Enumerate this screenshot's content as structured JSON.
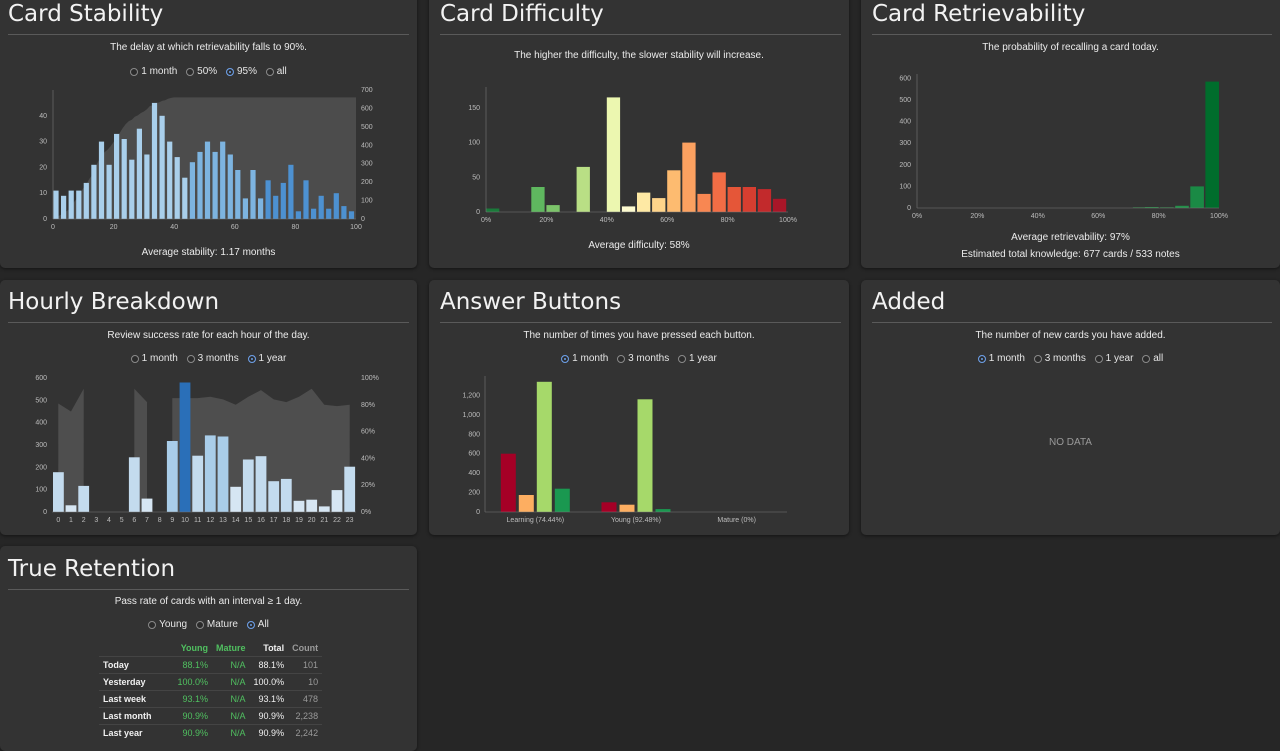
{
  "stability": {
    "title": "Card Stability",
    "subtitle": "The delay at which retrievability falls to 90%.",
    "radios": [
      {
        "label": "1 month",
        "on": false
      },
      {
        "label": "50%",
        "on": false
      },
      {
        "label": "95%",
        "on": true
      },
      {
        "label": "all",
        "on": false
      }
    ],
    "footer": "Average stability: 1.17 months"
  },
  "difficulty": {
    "title": "Card Difficulty",
    "subtitle": "The higher the difficulty, the slower stability will increase.",
    "footer": "Average difficulty: 58%"
  },
  "retrievability": {
    "title": "Card Retrievability",
    "subtitle": "The probability of recalling a card today.",
    "footer1": "Average retrievability: 97%",
    "footer2": "Estimated total knowledge: 677 cards / 533 notes"
  },
  "hourly": {
    "title": "Hourly Breakdown",
    "subtitle": "Review success rate for each hour of the day.",
    "radios": [
      {
        "label": "1 month",
        "on": false
      },
      {
        "label": "3 months",
        "on": false
      },
      {
        "label": "1 year",
        "on": true
      }
    ]
  },
  "answers": {
    "title": "Answer Buttons",
    "subtitle": "The number of times you have pressed each button.",
    "radios": [
      {
        "label": "1 month",
        "on": true
      },
      {
        "label": "3 months",
        "on": false
      },
      {
        "label": "1 year",
        "on": false
      }
    ]
  },
  "added": {
    "title": "Added",
    "subtitle": "The number of new cards you have added.",
    "radios": [
      {
        "label": "1 month",
        "on": true
      },
      {
        "label": "3 months",
        "on": false
      },
      {
        "label": "1 year",
        "on": false
      },
      {
        "label": "all",
        "on": false
      }
    ],
    "nodata": "NO DATA"
  },
  "retention": {
    "title": "True Retention",
    "subtitle": "Pass rate of cards with an interval ≥ 1 day.",
    "radios": [
      {
        "label": "Young",
        "on": false
      },
      {
        "label": "Mature",
        "on": false
      },
      {
        "label": "All",
        "on": true
      }
    ],
    "headers": [
      "",
      "Young",
      "Mature",
      "Total",
      "Count"
    ],
    "rows": [
      {
        "label": "Today",
        "young": "88.1%",
        "mature": "N/A",
        "total": "88.1%",
        "count": "101"
      },
      {
        "label": "Yesterday",
        "young": "100.0%",
        "mature": "N/A",
        "total": "100.0%",
        "count": "10"
      },
      {
        "label": "Last week",
        "young": "93.1%",
        "mature": "N/A",
        "total": "93.1%",
        "count": "478"
      },
      {
        "label": "Last month",
        "young": "90.9%",
        "mature": "N/A",
        "total": "90.9%",
        "count": "2,238"
      },
      {
        "label": "Last year",
        "young": "90.9%",
        "mature": "N/A",
        "total": "90.9%",
        "count": "2,242"
      }
    ]
  },
  "chart_data": [
    {
      "id": "stability",
      "type": "bar",
      "x_start": 1,
      "x_step": 1,
      "values": [
        11,
        9,
        11,
        11,
        14,
        21,
        30,
        21,
        33,
        31,
        23,
        35,
        25,
        45,
        40,
        30,
        24,
        16,
        22,
        26,
        30,
        26,
        30,
        25,
        19,
        8,
        19,
        8,
        15,
        9,
        14,
        21,
        3,
        15,
        4,
        9,
        4,
        10,
        5,
        3
      ],
      "ylim": [
        0,
        50
      ],
      "yticks": [
        0,
        10,
        20,
        30,
        40
      ],
      "xlim": [
        0,
        100
      ],
      "xticks": [
        0,
        20,
        40,
        60,
        80,
        100
      ],
      "cumulative": {
        "y2lim": [
          0,
          700
        ],
        "y2ticks": [
          0,
          100,
          200,
          300,
          400,
          500,
          600,
          700
        ]
      }
    },
    {
      "id": "difficulty",
      "type": "bar",
      "xticks": [
        "0%",
        "20%",
        "40%",
        "60%",
        "80%",
        "100%"
      ],
      "yticks": [
        0,
        50,
        100,
        150
      ],
      "ylim": [
        0,
        180
      ],
      "bins": [
        {
          "x": 0,
          "value": 5,
          "color": "#1a7a3a"
        },
        {
          "x": 15,
          "value": 36,
          "color": "#5fb85f"
        },
        {
          "x": 20,
          "value": 10,
          "color": "#7cc46a"
        },
        {
          "x": 30,
          "value": 65,
          "color": "#b9df85"
        },
        {
          "x": 40,
          "value": 165,
          "color": "#ecf7b0"
        },
        {
          "x": 45,
          "value": 8,
          "color": "#fdfbd0"
        },
        {
          "x": 50,
          "value": 28,
          "color": "#fee9a4"
        },
        {
          "x": 55,
          "value": 20,
          "color": "#fed48a"
        },
        {
          "x": 60,
          "value": 60,
          "color": "#fdbb70"
        },
        {
          "x": 65,
          "value": 100,
          "color": "#fca160"
        },
        {
          "x": 70,
          "value": 26,
          "color": "#f88752"
        },
        {
          "x": 75,
          "value": 57,
          "color": "#f26d45"
        },
        {
          "x": 80,
          "value": 36,
          "color": "#e55638"
        },
        {
          "x": 85,
          "value": 36,
          "color": "#d63e30"
        },
        {
          "x": 90,
          "value": 33,
          "color": "#c22a2c"
        },
        {
          "x": 95,
          "value": 19,
          "color": "#a81628"
        }
      ]
    },
    {
      "id": "retrievability",
      "type": "bar",
      "xticks": [
        "0%",
        "20%",
        "40%",
        "60%",
        "80%",
        "100%"
      ],
      "yticks": [
        0,
        100,
        200,
        300,
        400,
        500,
        600
      ],
      "ylim": [
        0,
        620
      ],
      "bins": [
        {
          "x": 76,
          "value": 3,
          "color": "#2e9a4e"
        },
        {
          "x": 80,
          "value": 4,
          "color": "#2e9a4e"
        },
        {
          "x": 85,
          "value": 3,
          "color": "#2e9a4e"
        },
        {
          "x": 90,
          "value": 10,
          "color": "#23914a"
        },
        {
          "x": 95,
          "value": 100,
          "color": "#1a8a45"
        },
        {
          "x": 100,
          "value": 585,
          "color": "#006d2c"
        }
      ]
    },
    {
      "id": "hourly",
      "type": "bar",
      "categories": [
        "0",
        "1",
        "2",
        "3",
        "4",
        "5",
        "6",
        "7",
        "8",
        "9",
        "10",
        "11",
        "12",
        "13",
        "14",
        "15",
        "16",
        "17",
        "18",
        "19",
        "20",
        "21",
        "22",
        "23"
      ],
      "values": [
        178,
        30,
        117,
        0,
        0,
        0,
        245,
        60,
        0,
        318,
        580,
        252,
        343,
        338,
        113,
        235,
        250,
        138,
        148,
        50,
        55,
        25,
        98,
        203
      ],
      "ylim": [
        0,
        600
      ],
      "yticks": [
        0,
        100,
        200,
        300,
        400,
        500,
        600
      ],
      "y2ticks": [
        "0%",
        "20%",
        "40%",
        "60%",
        "80%",
        "100%"
      ],
      "success_rate": [
        0.81,
        0.75,
        0.92,
        null,
        null,
        null,
        0.92,
        0.82,
        null,
        0.85,
        0.85,
        0.85,
        0.86,
        0.84,
        0.8,
        0.86,
        0.91,
        0.84,
        0.82,
        0.86,
        0.92,
        0.8,
        0.79,
        0.8
      ]
    },
    {
      "id": "answers",
      "type": "bar",
      "groups": [
        {
          "label": "Learning (74.44%)",
          "values": [
            600,
            175,
            1340,
            240
          ]
        },
        {
          "label": "Young (92.48%)",
          "values": [
            100,
            75,
            1160,
            30
          ]
        },
        {
          "label": "Mature (0%)",
          "values": [
            0,
            0,
            0,
            0
          ]
        }
      ],
      "colors": [
        "#a50026",
        "#fdae61",
        "#a6d96a",
        "#1a9850"
      ],
      "ylim": [
        0,
        1400
      ],
      "yticks": [
        "0",
        "200",
        "400",
        "600",
        "800",
        "1,000",
        "1,200"
      ]
    }
  ]
}
